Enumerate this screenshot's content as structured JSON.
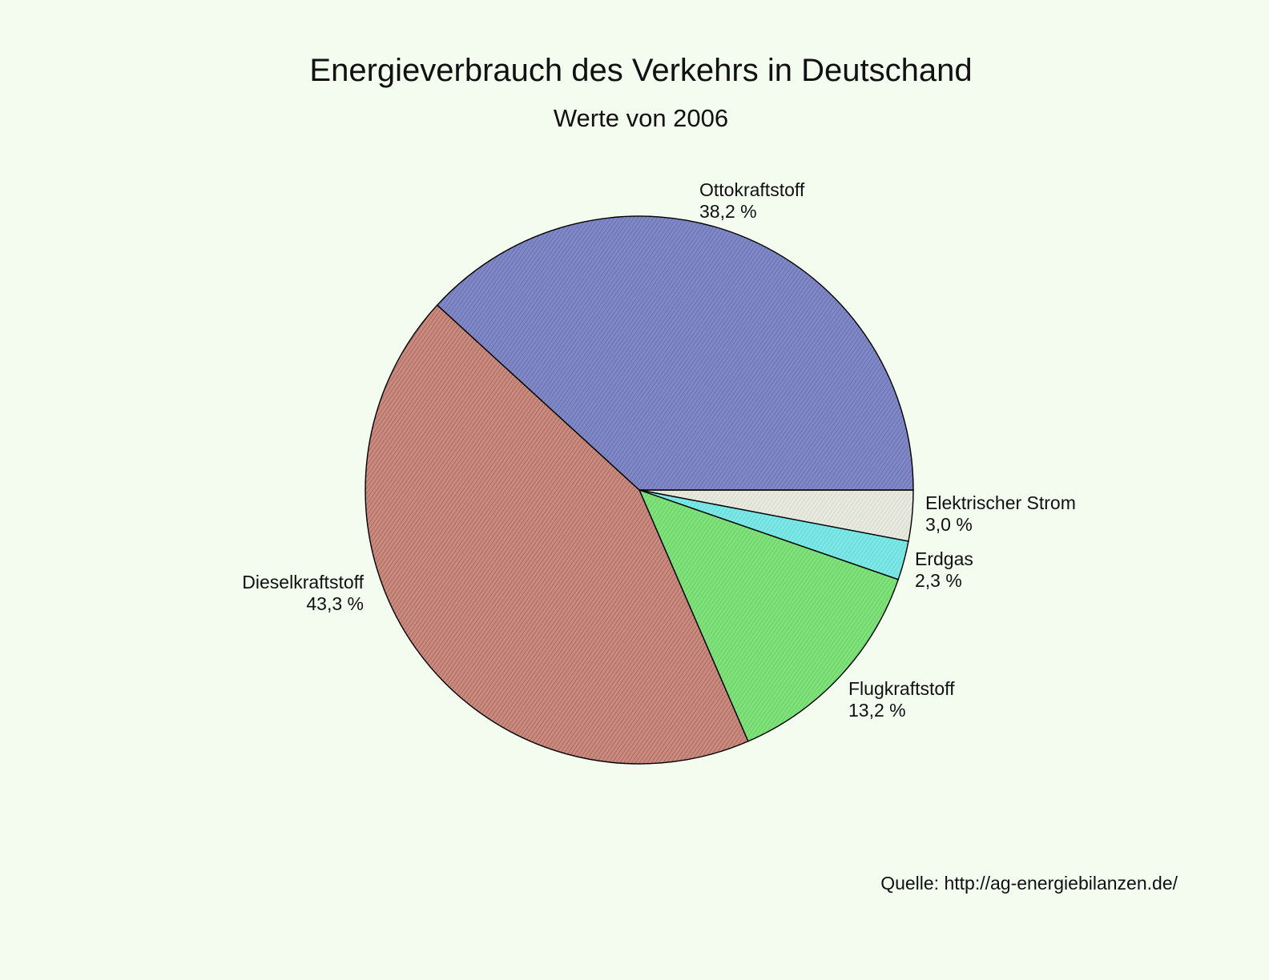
{
  "chart_data": {
    "type": "pie",
    "title": "Energieverbrauch des Verkehrs in Deutschand",
    "subtitle": "Werte von 2006",
    "source": "Quelle: http://ag-energiebilanzen.de/",
    "slices": [
      {
        "name": "Elektrischer Strom",
        "label": "3,0 %",
        "value": 3.0,
        "color": "#e8eadf",
        "hatch": "#c9cbbf"
      },
      {
        "name": "Erdgas",
        "label": "2,3 %",
        "value": 2.3,
        "color": "#7ce8e8",
        "hatch": "#5ccaca"
      },
      {
        "name": "Flugkraftstoff",
        "label": "13,2 %",
        "value": 13.2,
        "color": "#7fe27a",
        "hatch": "#5ec25a"
      },
      {
        "name": "Dieselkraftstoff",
        "label": "43,3 %",
        "value": 43.3,
        "color": "#cc8a7e",
        "hatch": "#8a5a52"
      },
      {
        "name": "Ottokraftstoff",
        "label": "38,2 %",
        "value": 38.2,
        "color": "#8088c6",
        "hatch": "#5a62a4"
      }
    ]
  }
}
